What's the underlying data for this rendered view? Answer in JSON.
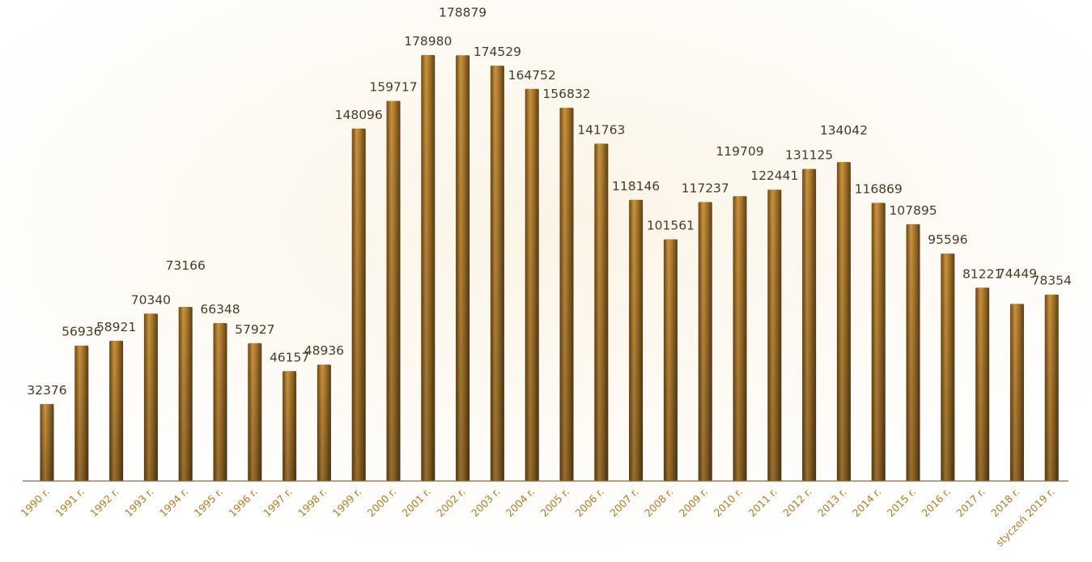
{
  "chart_data": {
    "type": "bar",
    "categories": [
      "1990 r.",
      "1991 r.",
      "1992 r.",
      "1993 r.",
      "1994 r.",
      "1995 r.",
      "1996 r.",
      "1997 r.",
      "1998 r.",
      "1999 r.",
      "2000 r.",
      "2001 r.",
      "2002 r.",
      "2003 r.",
      "2004 r.",
      "2005 r.",
      "2006 r.",
      "2007 r.",
      "2008 r.",
      "2009 r.",
      "2010 r.",
      "2011 r.",
      "2012 r.",
      "2013 r.",
      "2014 r.",
      "2015 r.",
      "2016 r.",
      "2017 r.",
      "2018 r.",
      "styczeń 2019 r."
    ],
    "values": [
      32376,
      56936,
      58921,
      70340,
      73166,
      66348,
      57927,
      46157,
      48936,
      148096,
      159717,
      178980,
      178879,
      174529,
      164752,
      156832,
      141763,
      118146,
      101561,
      117237,
      119709,
      122441,
      131125,
      134042,
      116869,
      107895,
      95596,
      81221,
      74449,
      78354
    ],
    "ylim": [
      0,
      180000
    ],
    "grid": false,
    "legend": "none",
    "colors": {
      "bar_light": "#c99440",
      "bar_mid": "#9a6a22",
      "bar_dark": "#6b4616",
      "axis": "#8c6a3c",
      "value_label": "#4a3a26",
      "tick_label": "#b8791f"
    }
  }
}
